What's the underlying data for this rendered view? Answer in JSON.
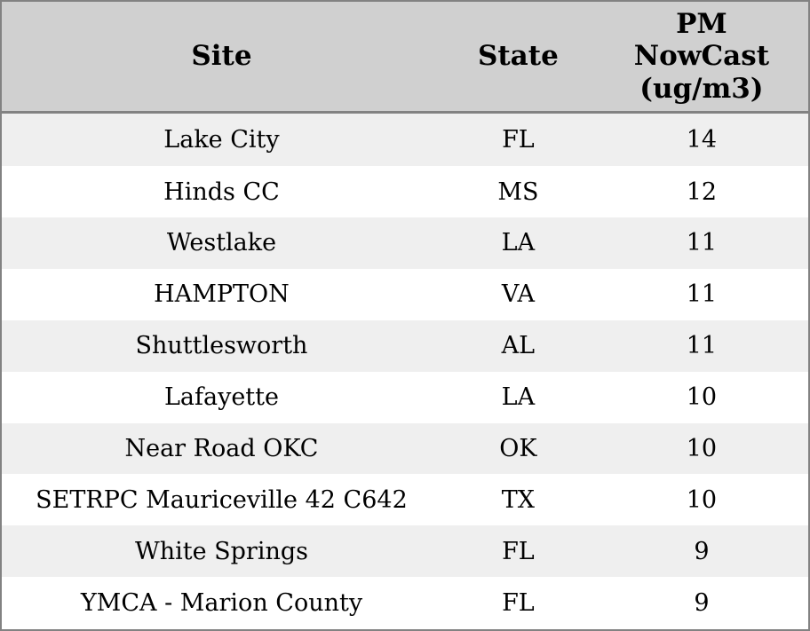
{
  "chart_data": {
    "type": "table",
    "columns": [
      "Site",
      "State",
      "PM NowCast (ug/m3)"
    ],
    "header_display": [
      "Site",
      "State",
      "PM\nNowCast\n(ug/m3)"
    ],
    "rows": [
      [
        "Lake City",
        "FL",
        14
      ],
      [
        "Hinds CC",
        "MS",
        12
      ],
      [
        "Westlake",
        "LA",
        11
      ],
      [
        "HAMPTON",
        "VA",
        11
      ],
      [
        "Shuttlesworth",
        "AL",
        11
      ],
      [
        "Lafayette",
        "LA",
        10
      ],
      [
        "Near Road OKC",
        "OK",
        10
      ],
      [
        "SETRPC Mauriceville 42 C642",
        "TX",
        10
      ],
      [
        "White Springs",
        "FL",
        9
      ],
      [
        "YMCA - Marion County",
        "FL",
        9
      ]
    ],
    "layout": {
      "grid": "no inner gridlines",
      "row_striping": "odd rows shaded",
      "alignment": "all cells centered"
    }
  },
  "colors": {
    "header_bg": "#d0d0d0",
    "row_stripe_bg": "#efefef",
    "row_bg": "#ffffff",
    "border": "#828282",
    "text": "#000000"
  }
}
